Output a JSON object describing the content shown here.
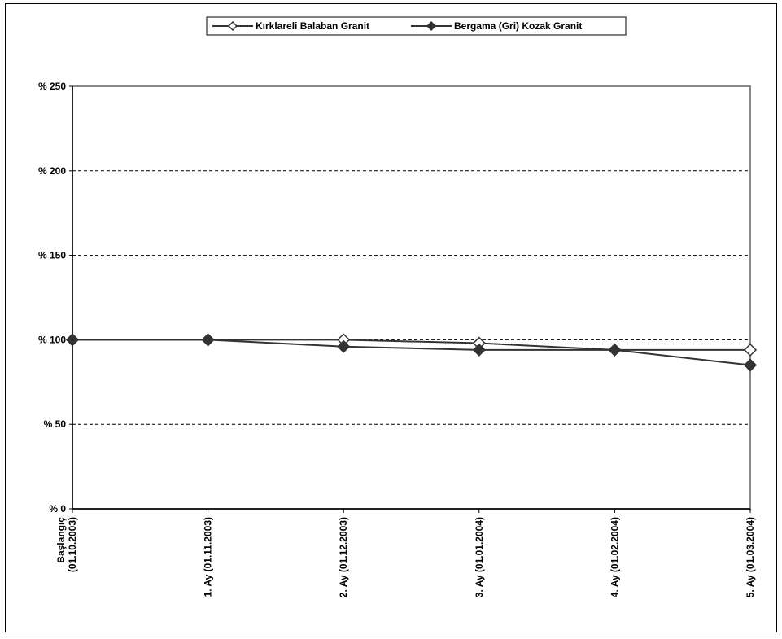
{
  "chart_data": {
    "type": "line",
    "categories": [
      [
        "Başlangıç",
        "(01.10.2003)"
      ],
      [
        "1. Ay (01.11.2003)"
      ],
      [
        "2. Ay (01.12.2003)"
      ],
      [
        "3. Ay (01.01.2004)"
      ],
      [
        "4. Ay (01.02.2004)"
      ],
      [
        "5. Ay (01.03.2004)"
      ]
    ],
    "ylim": [
      0,
      250
    ],
    "yticks": [
      0,
      50,
      100,
      150,
      200,
      250
    ],
    "ytick_labels": [
      "% 0",
      "% 50",
      "% 100",
      "% 150",
      "% 200",
      "% 250"
    ],
    "grid": true,
    "legend_position": "top-center",
    "series": [
      {
        "name": "Kırklareli Balaban Granit",
        "marker": "diamond-open",
        "color": "#333333",
        "values": [
          100,
          100,
          100,
          98,
          94,
          94
        ]
      },
      {
        "name": "Bergama (Gri) Kozak Granit",
        "marker": "diamond-filled",
        "color": "#333333",
        "values": [
          100,
          100,
          96,
          94,
          94,
          85
        ]
      }
    ]
  }
}
